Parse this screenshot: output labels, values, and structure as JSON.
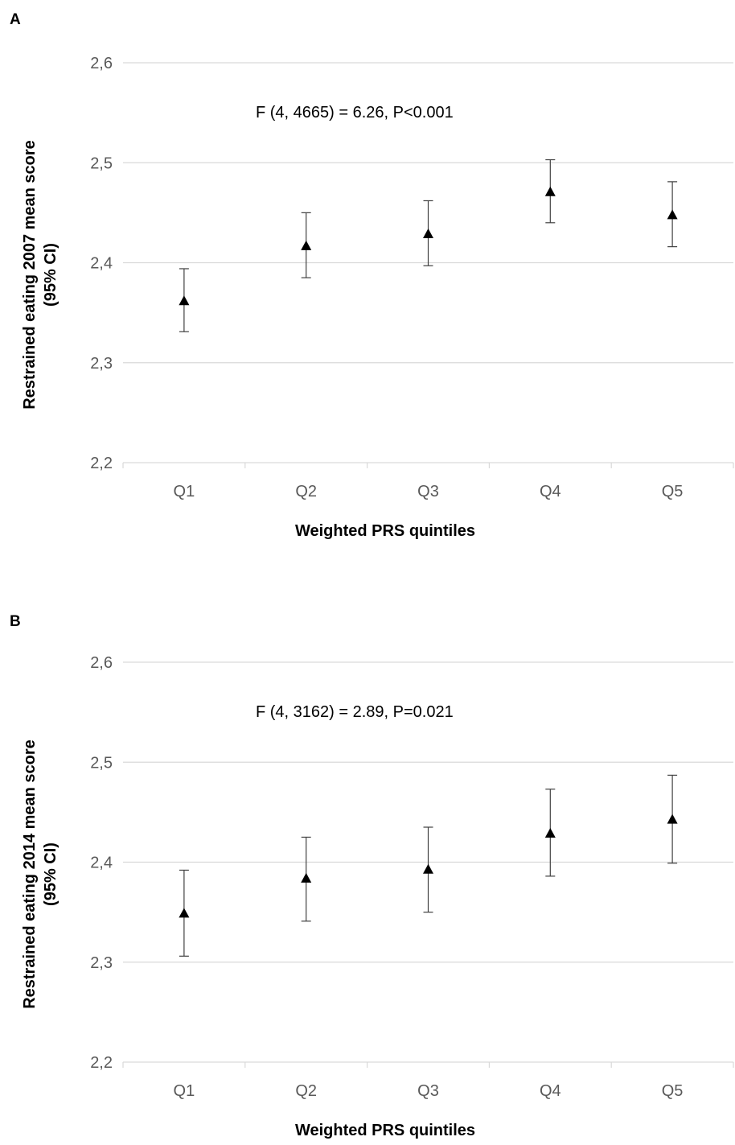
{
  "chart_data": [
    {
      "panel": "A",
      "type": "scatter",
      "categories": [
        "Q1",
        "Q2",
        "Q3",
        "Q4",
        "Q5"
      ],
      "values": [
        2.362,
        2.417,
        2.429,
        2.471,
        2.448
      ],
      "ci_lower": [
        2.331,
        2.385,
        2.397,
        2.44,
        2.416
      ],
      "ci_upper": [
        2.394,
        2.45,
        2.462,
        2.503,
        2.481
      ],
      "ylim": [
        2.2,
        2.6
      ],
      "yticks": [
        "2,2",
        "2,3",
        "2,4",
        "2,5",
        "2,6"
      ],
      "ylabel_line1": "Restrained eating 2007 mean score",
      "ylabel_line2": "(95% CI)",
      "xlabel": "Weighted PRS quintiles",
      "annotation": "F (4, 4665) = 6.26, P<0.001",
      "grid": true,
      "marker_color": "#000000"
    },
    {
      "panel": "B",
      "type": "scatter",
      "categories": [
        "Q1",
        "Q2",
        "Q3",
        "Q4",
        "Q5"
      ],
      "values": [
        2.349,
        2.384,
        2.393,
        2.429,
        2.443
      ],
      "ci_lower": [
        2.306,
        2.341,
        2.35,
        2.386,
        2.399
      ],
      "ci_upper": [
        2.392,
        2.425,
        2.435,
        2.473,
        2.487
      ],
      "ylim": [
        2.2,
        2.6
      ],
      "yticks": [
        "2,2",
        "2,3",
        "2,4",
        "2,5",
        "2,6"
      ],
      "ylabel_line1": "Restrained eating 2014 mean score",
      "ylabel_line2": "(95% CI)",
      "xlabel": "Weighted PRS quintiles",
      "annotation": "F (4, 3162) = 2.89, P=0.021",
      "grid": true,
      "marker_color": "#000000"
    }
  ]
}
